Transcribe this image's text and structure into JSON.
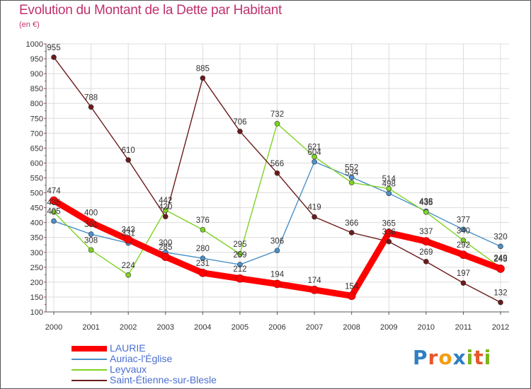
{
  "chart_data": {
    "type": "line",
    "title": "Evolution du Montant de la Dette par Habitant",
    "subtitle": "(en €)",
    "x": [
      "2000",
      "2001",
      "2002",
      "2003",
      "2004",
      "2005",
      "2006",
      "2007",
      "2008",
      "2009",
      "2010",
      "2011",
      "2012"
    ],
    "ylim": [
      100,
      1000
    ],
    "yticks": [
      100,
      150,
      200,
      250,
      300,
      350,
      400,
      450,
      500,
      550,
      600,
      650,
      700,
      750,
      800,
      850,
      900,
      950,
      1000
    ],
    "grid": true,
    "legend": "bottom-left",
    "series": [
      {
        "name": "LAURIE",
        "color": "#ff0000",
        "values": [
          474,
          400,
          343,
          285,
          231,
          212,
          194,
          174,
          154,
          365,
          337,
          292,
          245
        ]
      },
      {
        "name": "Auriac-l'Église",
        "color": "#4a90c8",
        "values": [
          405,
          361,
          331,
          300,
          280,
          259,
          306,
          604,
          552,
          498,
          438,
          377,
          320
        ]
      },
      {
        "name": "Leyvaux",
        "color": "#7ed321",
        "values": [
          435,
          308,
          224,
          442,
          376,
          295,
          732,
          621,
          534,
          514,
          435,
          340,
          249
        ]
      },
      {
        "name": "Saint-Étienne-sur-Blesle",
        "color": "#6b1a1a",
        "values": [
          955,
          788,
          610,
          420,
          885,
          706,
          566,
          419,
          366,
          336,
          269,
          197,
          132
        ]
      }
    ]
  },
  "logo": {
    "text": "Proxiti",
    "letters": [
      {
        "ch": "P",
        "color": "#2f7fc1"
      },
      {
        "ch": "r",
        "color": "#e8562a"
      },
      {
        "ch": "o",
        "color": "#f39c12"
      },
      {
        "ch": "x",
        "color": "#2f7fc1"
      },
      {
        "ch": "i",
        "color": "#7cb518"
      },
      {
        "ch": "t",
        "color": "#e8562a"
      },
      {
        "ch": "i",
        "color": "#7cb518"
      }
    ]
  }
}
